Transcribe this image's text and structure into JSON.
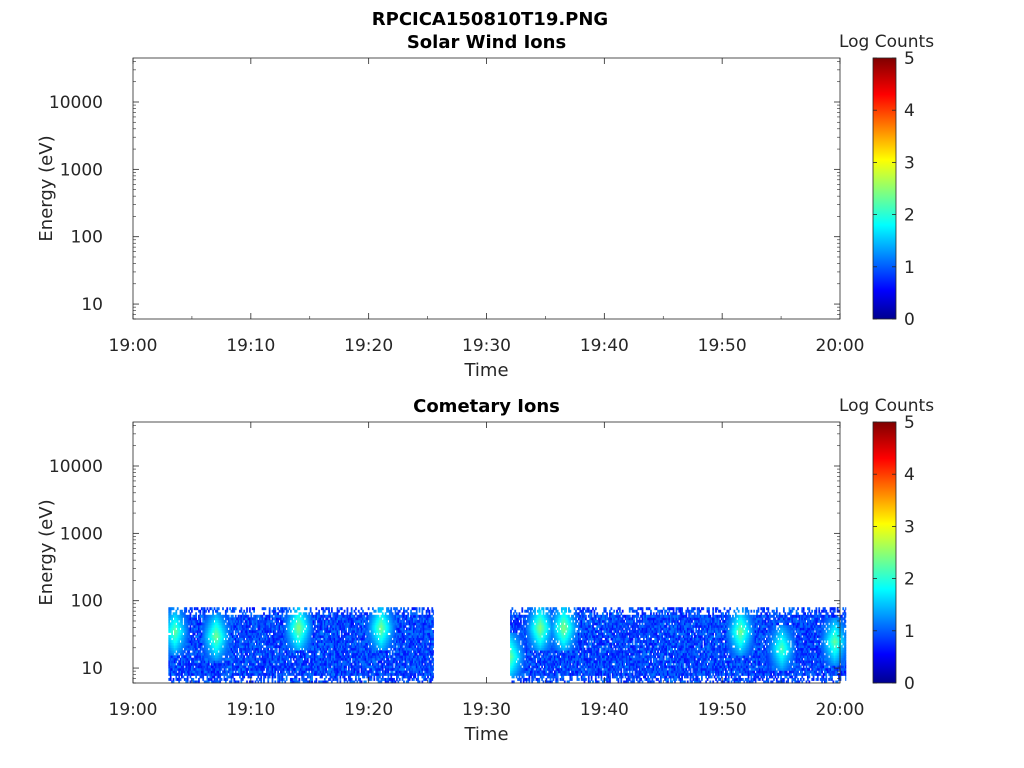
{
  "figure_title": "RPCICA150810T19.PNG",
  "chart_data": [
    {
      "type": "heatmap",
      "title": "Solar Wind Ions",
      "xlabel": "Time",
      "ylabel": "Energy (eV)",
      "yscale": "log",
      "ylim": [
        6,
        45000
      ],
      "xlim": [
        "19:00",
        "20:00"
      ],
      "x_ticks": [
        "19:00",
        "19:10",
        "19:20",
        "19:30",
        "19:40",
        "19:50",
        "20:00"
      ],
      "y_ticks": [
        "10",
        "100",
        "1000",
        "10000"
      ],
      "y_tick_values": [
        10,
        100,
        1000,
        10000
      ],
      "colorbar": {
        "label": "Log Counts",
        "min": 0,
        "max": 5,
        "ticks": [
          "0",
          "1",
          "2",
          "3",
          "4",
          "5"
        ],
        "colormap": "jet"
      },
      "data_segments": []
    },
    {
      "type": "heatmap",
      "title": "Cometary Ions",
      "xlabel": "Time",
      "ylabel": "Energy (eV)",
      "yscale": "log",
      "ylim": [
        6,
        45000
      ],
      "xlim": [
        "19:00",
        "20:00"
      ],
      "x_ticks": [
        "19:00",
        "19:10",
        "19:20",
        "19:30",
        "19:40",
        "19:50",
        "20:00"
      ],
      "y_ticks": [
        "10",
        "100",
        "1000",
        "10000"
      ],
      "y_tick_values": [
        10,
        100,
        1000,
        10000
      ],
      "colorbar": {
        "label": "Log Counts",
        "min": 0,
        "max": 5,
        "ticks": [
          "0",
          "1",
          "2",
          "3",
          "4",
          "5"
        ],
        "colormap": "jet"
      },
      "data_segments": [
        {
          "start": "19:03",
          "end": "19:25.5",
          "energy_min": 6,
          "energy_max": 80,
          "typical_log_counts": 1.2,
          "peak_log_counts": 2.0
        },
        {
          "start": "19:32",
          "end": "20:00.5",
          "energy_min": 6,
          "energy_max": 80,
          "typical_log_counts": 1.2,
          "peak_log_counts": 2.0
        }
      ],
      "bright_features": [
        {
          "time": "19:03.5",
          "energy": 35,
          "log_counts": 1.8
        },
        {
          "time": "19:07",
          "energy": 30,
          "log_counts": 1.9
        },
        {
          "time": "19:14",
          "energy": 40,
          "log_counts": 2.0
        },
        {
          "time": "19:21",
          "energy": 40,
          "log_counts": 1.9
        },
        {
          "time": "19:32",
          "energy": 15,
          "log_counts": 1.8
        },
        {
          "time": "19:34.5",
          "energy": 40,
          "log_counts": 2.0
        },
        {
          "time": "19:36.5",
          "energy": 40,
          "log_counts": 2.0
        },
        {
          "time": "19:51.5",
          "energy": 35,
          "log_counts": 1.9
        },
        {
          "time": "19:55",
          "energy": 20,
          "log_counts": 1.7
        },
        {
          "time": "19:59.5",
          "energy": 25,
          "log_counts": 1.8
        }
      ]
    }
  ]
}
